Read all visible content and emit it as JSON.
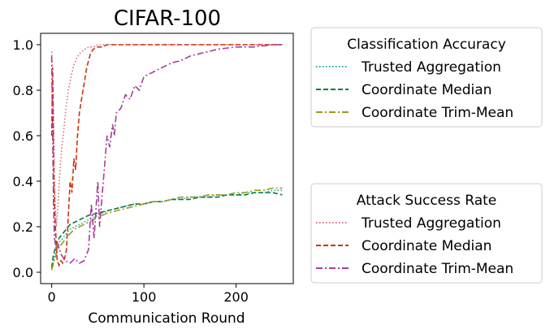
{
  "chart_data": {
    "type": "line",
    "title": "CIFAR-100",
    "xlabel": "Communication Round",
    "ylabel": "",
    "xlim": [
      -12,
      262
    ],
    "ylim": [
      -0.05,
      1.05
    ],
    "xticks": [
      0,
      100,
      200
    ],
    "yticks": [
      0.0,
      0.2,
      0.4,
      0.6,
      0.8,
      1.0
    ],
    "grid": false,
    "legends": [
      {
        "title": "Classification Accuracy",
        "placement": "outside-right-top",
        "entries": [
          "Trusted Aggregation",
          "Coordinate Median",
          "Coordinate Trim-Mean"
        ]
      },
      {
        "title": "Attack Success Rate",
        "placement": "outside-right-bottom",
        "entries": [
          "Trusted Aggregation",
          "Coordinate Median",
          "Coordinate Trim-Mean"
        ]
      }
    ],
    "series": [
      {
        "name": "Trusted Aggregation",
        "group": "Classification Accuracy",
        "color": "#1aa79c",
        "dash": "dotted",
        "x": [
          0,
          2,
          5,
          8,
          12,
          16,
          20,
          25,
          30,
          40,
          50,
          60,
          70,
          80,
          90,
          100,
          110,
          120,
          130,
          140,
          150,
          160,
          170,
          180,
          190,
          200,
          210,
          220,
          230,
          240,
          250
        ],
        "y": [
          0.01,
          0.05,
          0.1,
          0.13,
          0.15,
          0.17,
          0.19,
          0.2,
          0.21,
          0.23,
          0.25,
          0.27,
          0.28,
          0.29,
          0.3,
          0.3,
          0.31,
          0.31,
          0.32,
          0.32,
          0.33,
          0.33,
          0.33,
          0.34,
          0.34,
          0.34,
          0.35,
          0.35,
          0.35,
          0.36,
          0.36
        ]
      },
      {
        "name": "Coordinate Median",
        "group": "Classification Accuracy",
        "color": "#0a7a3a",
        "dash": "dashed",
        "x": [
          0,
          2,
          5,
          8,
          12,
          16,
          20,
          25,
          30,
          40,
          50,
          60,
          70,
          80,
          90,
          100,
          110,
          120,
          130,
          140,
          150,
          160,
          170,
          180,
          190,
          200,
          210,
          220,
          230,
          240,
          250
        ],
        "y": [
          0.02,
          0.08,
          0.12,
          0.15,
          0.17,
          0.19,
          0.21,
          0.22,
          0.23,
          0.25,
          0.26,
          0.27,
          0.28,
          0.29,
          0.3,
          0.3,
          0.31,
          0.31,
          0.32,
          0.32,
          0.32,
          0.33,
          0.33,
          0.33,
          0.34,
          0.34,
          0.34,
          0.35,
          0.35,
          0.35,
          0.34
        ]
      },
      {
        "name": "Coordinate Trim-Mean",
        "group": "Classification Accuracy",
        "color": "#9a9a1e",
        "dash": "dashdot",
        "x": [
          0,
          2,
          5,
          8,
          12,
          16,
          20,
          25,
          30,
          40,
          50,
          60,
          70,
          80,
          90,
          100,
          110,
          120,
          130,
          140,
          150,
          160,
          170,
          180,
          190,
          200,
          210,
          220,
          230,
          240,
          250
        ],
        "y": [
          0.01,
          0.04,
          0.08,
          0.11,
          0.13,
          0.15,
          0.17,
          0.19,
          0.2,
          0.22,
          0.24,
          0.26,
          0.27,
          0.28,
          0.29,
          0.3,
          0.31,
          0.31,
          0.32,
          0.33,
          0.33,
          0.33,
          0.34,
          0.34,
          0.34,
          0.35,
          0.35,
          0.36,
          0.36,
          0.37,
          0.37
        ]
      },
      {
        "name": "Trusted Aggregation",
        "group": "Attack Success Rate",
        "color": "#d96a78",
        "dash": "dotted",
        "x": [
          0,
          1,
          2,
          3,
          5,
          7,
          9,
          11,
          13,
          15,
          18,
          21,
          24,
          27,
          30,
          33,
          36,
          40,
          45,
          50,
          60,
          80,
          100,
          150,
          200,
          250
        ],
        "y": [
          0.97,
          0.85,
          0.7,
          0.4,
          0.2,
          0.3,
          0.45,
          0.55,
          0.62,
          0.7,
          0.8,
          0.86,
          0.91,
          0.94,
          0.96,
          0.97,
          0.98,
          0.99,
          0.99,
          1.0,
          1.0,
          1.0,
          1.0,
          1.0,
          1.0,
          1.0
        ]
      },
      {
        "name": "Coordinate Median",
        "group": "Attack Success Rate",
        "color": "#cc3311",
        "dash": "dashed",
        "x": [
          0,
          1,
          2,
          3,
          4,
          6,
          8,
          10,
          12,
          14,
          16,
          18,
          20,
          22,
          24,
          26,
          28,
          30,
          32,
          34,
          36,
          38,
          40,
          42,
          45,
          50,
          55,
          60,
          80,
          100,
          150,
          200,
          250
        ],
        "y": [
          0.6,
          0.9,
          0.5,
          0.3,
          0.2,
          0.05,
          0.03,
          0.05,
          0.04,
          0.06,
          0.1,
          0.25,
          0.4,
          0.35,
          0.5,
          0.45,
          0.6,
          0.7,
          0.75,
          0.8,
          0.85,
          0.9,
          0.93,
          0.96,
          0.98,
          0.99,
          0.99,
          1.0,
          1.0,
          1.0,
          1.0,
          1.0,
          1.0
        ]
      },
      {
        "name": "Coordinate Trim-Mean",
        "group": "Attack Success Rate",
        "color": "#aa3d9c",
        "dash": "dashdot",
        "x": [
          0,
          1,
          2,
          3,
          5,
          7,
          10,
          15,
          20,
          25,
          30,
          35,
          40,
          43,
          46,
          50,
          52,
          55,
          58,
          60,
          63,
          66,
          68,
          70,
          75,
          80,
          85,
          90,
          95,
          100,
          110,
          120,
          130,
          140,
          150,
          160,
          170,
          180,
          200,
          220,
          240,
          250
        ],
        "y": [
          0.95,
          0.6,
          0.3,
          0.15,
          0.1,
          0.12,
          0.08,
          0.05,
          0.04,
          0.06,
          0.04,
          0.05,
          0.1,
          0.3,
          0.15,
          0.4,
          0.2,
          0.35,
          0.5,
          0.6,
          0.55,
          0.65,
          0.6,
          0.7,
          0.72,
          0.78,
          0.76,
          0.82,
          0.8,
          0.86,
          0.88,
          0.9,
          0.92,
          0.93,
          0.95,
          0.96,
          0.97,
          0.98,
          0.99,
          0.99,
          1.0,
          1.0
        ]
      }
    ]
  }
}
